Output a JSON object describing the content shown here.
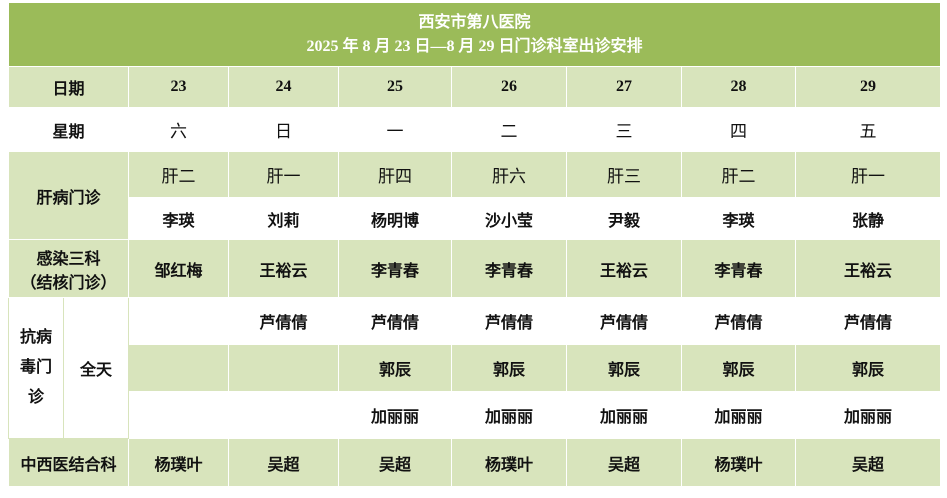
{
  "header": {
    "title": "西安市第八医院",
    "subtitle": "2025 年 8 月 23 日—8 月 29 日门诊科室出诊安排"
  },
  "dates": {
    "label": "日期",
    "values": [
      23,
      24,
      25,
      26,
      27,
      28,
      29
    ]
  },
  "weekdays": {
    "label": "星期",
    "values": [
      "六",
      "日",
      "一",
      "二",
      "三",
      "四",
      "五"
    ]
  },
  "liver": {
    "label": "肝病门诊",
    "rooms": [
      "肝二",
      "肝一",
      "肝四",
      "肝六",
      "肝三",
      "肝二",
      "肝一"
    ],
    "doctors": [
      "李瑛",
      "刘莉",
      "杨明博",
      "沙小莹",
      "尹毅",
      "李瑛",
      "张静"
    ]
  },
  "infection": {
    "label": "感染三科",
    "sublabel": "（结核门诊）",
    "doctors": [
      "邹红梅",
      "王裕云",
      "李青春",
      "李青春",
      "王裕云",
      "李青春",
      "王裕云"
    ]
  },
  "antiviral": {
    "label": "抗病毒门诊",
    "time": "全天",
    "rows": [
      [
        null,
        "芦倩倩",
        "芦倩倩",
        "芦倩倩",
        "芦倩倩",
        "芦倩倩",
        "芦倩倩"
      ],
      [
        null,
        null,
        "郭辰",
        "郭辰",
        "郭辰",
        "郭辰",
        "郭辰"
      ],
      [
        null,
        null,
        "加丽丽",
        "加丽丽",
        "加丽丽",
        "加丽丽",
        "加丽丽"
      ]
    ]
  },
  "tcm": {
    "label": "中西医结合科",
    "doctors": [
      "杨璞叶",
      "吴超",
      "吴超",
      "杨璞叶",
      "吴超",
      "杨璞叶",
      "吴超"
    ]
  }
}
